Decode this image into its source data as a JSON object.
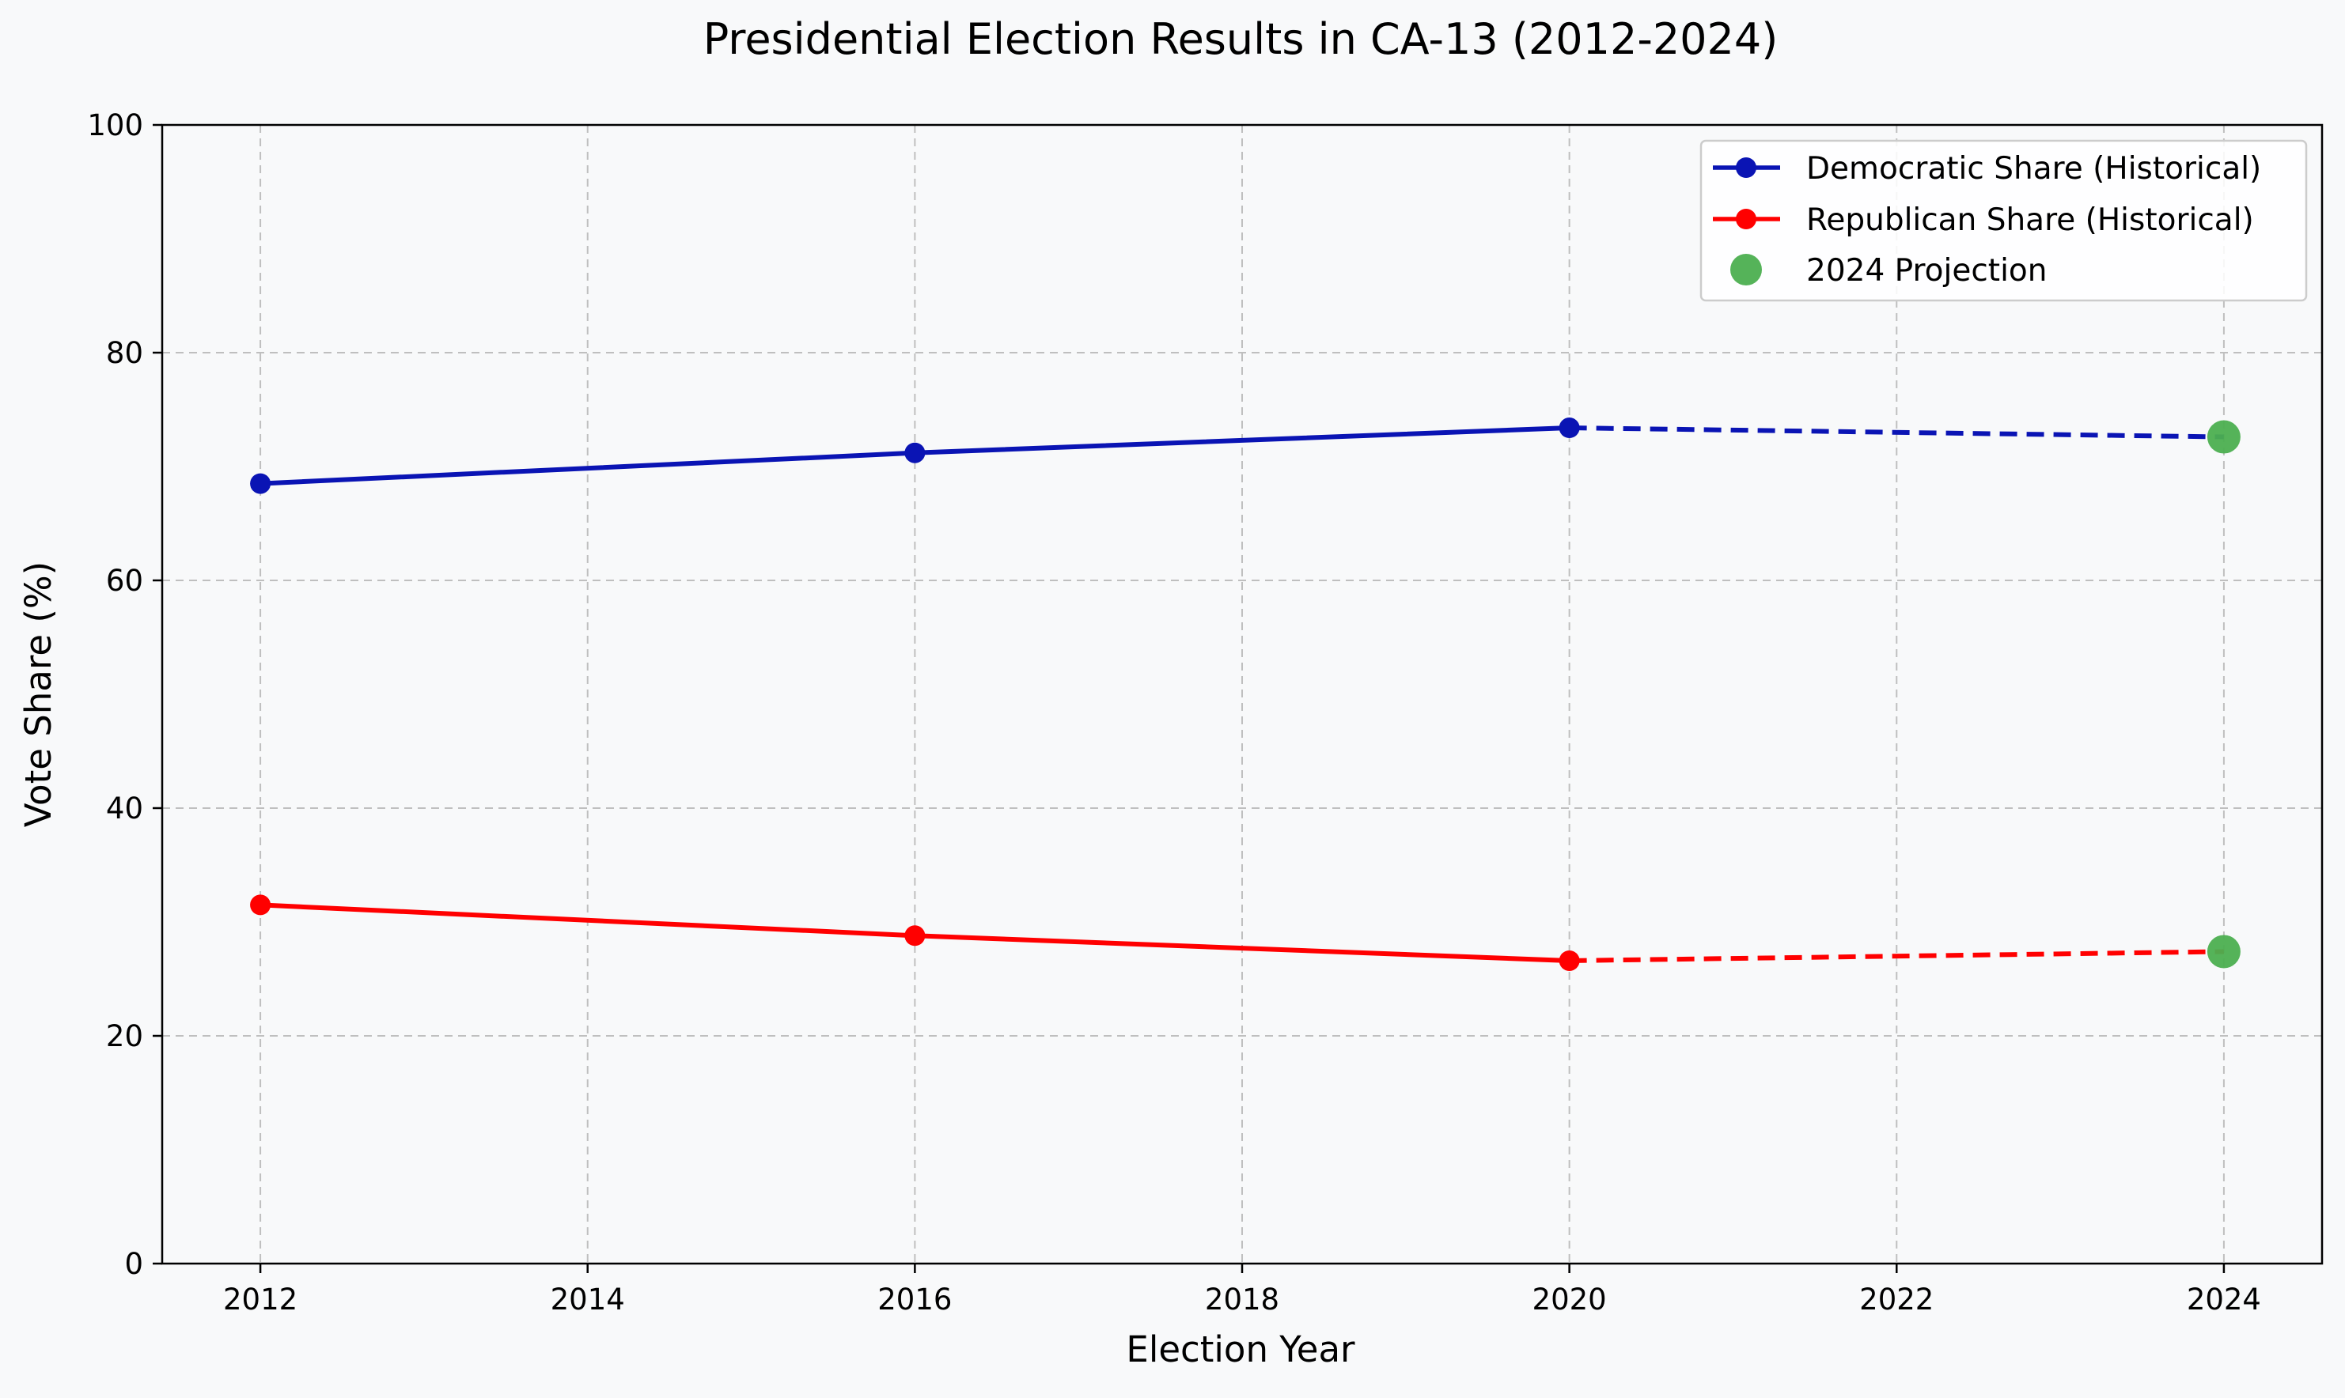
{
  "chart_data": {
    "type": "line",
    "title": "Presidential Election Results in CA-13 (2012-2024)",
    "xlabel": "Election Year",
    "ylabel": "Vote Share (%)",
    "xlim": [
      2011.4,
      2024.6
    ],
    "ylim": [
      0,
      100
    ],
    "x_ticks": [
      2012,
      2014,
      2016,
      2018,
      2020,
      2022,
      2024
    ],
    "y_ticks": [
      0,
      20,
      40,
      60,
      80,
      100
    ],
    "grid": true,
    "legend_position": "top-right",
    "series": [
      {
        "name": "Democratic Share (Historical)",
        "color": "#0a14b4",
        "x": [
          2012,
          2016,
          2020
        ],
        "values": [
          68.5,
          71.2,
          73.4
        ]
      },
      {
        "name": "Republican Share (Historical)",
        "color": "#ff0000",
        "x": [
          2012,
          2016,
          2020
        ],
        "values": [
          31.5,
          28.8,
          26.6
        ]
      }
    ],
    "projection_links": [
      {
        "color": "#0a14b4",
        "x": [
          2020,
          2024
        ],
        "values": [
          73.4,
          72.6
        ]
      },
      {
        "color": "#ff0000",
        "x": [
          2020,
          2024
        ],
        "values": [
          26.6,
          27.4
        ]
      }
    ],
    "projection": {
      "name": "2024 Projection",
      "color": "#4caf50",
      "x": [
        2024,
        2024
      ],
      "values": [
        72.6,
        27.4
      ]
    }
  }
}
